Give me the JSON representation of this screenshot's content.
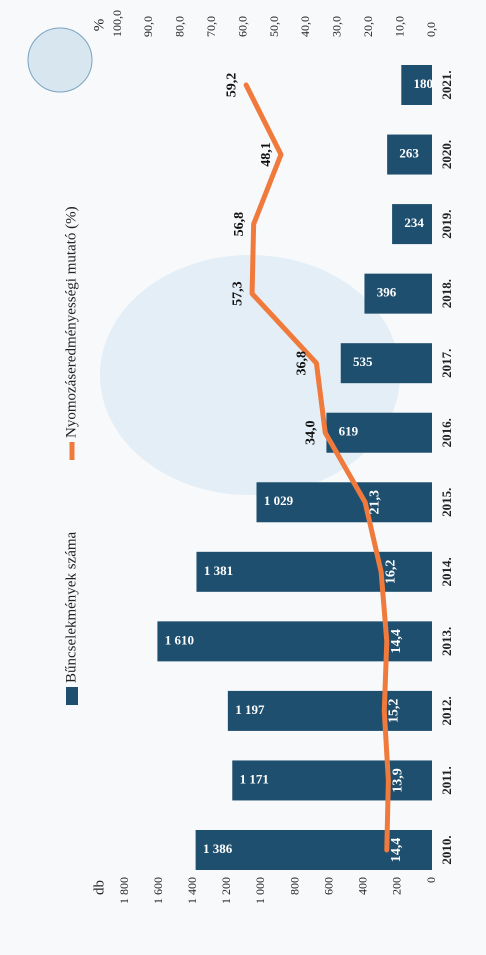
{
  "chart_data": {
    "type": "bar",
    "categories": [
      "2010.",
      "2011.",
      "2012.",
      "2013.",
      "2014.",
      "2015.",
      "2016.",
      "2017.",
      "2018.",
      "2019.",
      "2020.",
      "2021."
    ],
    "y_unit": "db",
    "y2_unit": "%",
    "series": [
      {
        "name": "Bűncselekmények száma",
        "type": "bar",
        "color": "#1f4f6e",
        "values": [
          1386,
          1171,
          1197,
          1610,
          1381,
          1029,
          619,
          535,
          396,
          234,
          263,
          180
        ],
        "value_labels": [
          "1 386",
          "1 171",
          "1 197",
          "1 610",
          "1 381",
          "1 029",
          "619",
          "535",
          "396",
          "234",
          "263",
          "180"
        ]
      },
      {
        "name": "Nyomozáseredményességi mutató (%)",
        "type": "line",
        "axis": "y2",
        "color": "#f07a3c",
        "values": [
          14.4,
          13.9,
          15.2,
          14.4,
          16.2,
          21.3,
          34.0,
          36.8,
          57.3,
          56.8,
          48.1,
          59.2
        ],
        "value_labels": [
          "14,4",
          "13,9",
          "15,2",
          "14,4",
          "16,2",
          "21,3",
          "34,0",
          "36,8",
          "57,3",
          "56,8",
          "48,1",
          "59,2"
        ]
      }
    ],
    "ylim": [
      0,
      1800
    ],
    "yticks": [
      0,
      200,
      400,
      600,
      800,
      {
        "value": 1000,
        "label": "1 000"
      },
      {
        "value": 1200,
        "label": "1 200"
      },
      {
        "value": 1400,
        "label": "1 400"
      },
      {
        "value": 1600,
        "label": "1 600"
      },
      {
        "value": 1800,
        "label": "1 800"
      }
    ],
    "y2lim": [
      0,
      100
    ],
    "y2ticks": [
      {
        "value": 0,
        "label": "0,0"
      },
      {
        "value": 10,
        "label": "10,0"
      },
      {
        "value": 20,
        "label": "20,0"
      },
      {
        "value": 30,
        "label": "30,0"
      },
      {
        "value": 40,
        "label": "40,0"
      },
      {
        "value": 50,
        "label": "50,0"
      },
      {
        "value": 60,
        "label": "60,0"
      },
      {
        "value": 70,
        "label": "70,0"
      },
      {
        "value": 80,
        "label": "80,0"
      },
      {
        "value": 90,
        "label": "90,0"
      },
      {
        "value": 100,
        "label": "100,0"
      }
    ]
  }
}
